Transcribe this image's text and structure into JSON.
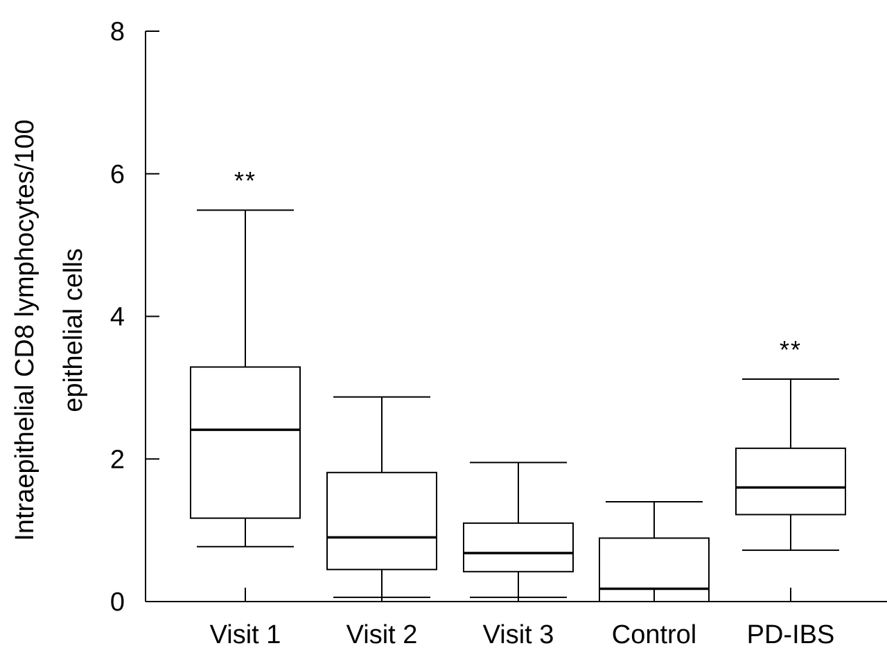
{
  "chart_data": {
    "type": "box",
    "ylabel": [
      "Intraepithelial CD8 lymphocytes/100",
      "epithelial cells"
    ],
    "xlabel": "",
    "ylim": [
      0,
      8
    ],
    "yticks": [
      0,
      2,
      4,
      6,
      8
    ],
    "categories": [
      "Visit 1",
      "Visit 2",
      "Visit 3",
      "Control",
      "PD-IBS"
    ],
    "boxes": [
      {
        "label": "Visit 1",
        "whisker_low": 0.77,
        "q1": 1.17,
        "median": 2.41,
        "q3": 3.29,
        "whisker_high": 5.49,
        "annotation": "**"
      },
      {
        "label": "Visit 2",
        "whisker_low": 0.06,
        "q1": 0.45,
        "median": 0.9,
        "q3": 1.81,
        "whisker_high": 2.87,
        "annotation": ""
      },
      {
        "label": "Visit 3",
        "whisker_low": 0.06,
        "q1": 0.42,
        "median": 0.68,
        "q3": 1.1,
        "whisker_high": 1.95,
        "annotation": ""
      },
      {
        "label": "Control",
        "whisker_low": 0.0,
        "q1": 0.0,
        "median": 0.18,
        "q3": 0.89,
        "whisker_high": 1.4,
        "annotation": ""
      },
      {
        "label": "PD-IBS",
        "whisker_low": 0.72,
        "q1": 1.22,
        "median": 1.6,
        "q3": 2.15,
        "whisker_high": 3.12,
        "annotation": "**"
      }
    ]
  }
}
